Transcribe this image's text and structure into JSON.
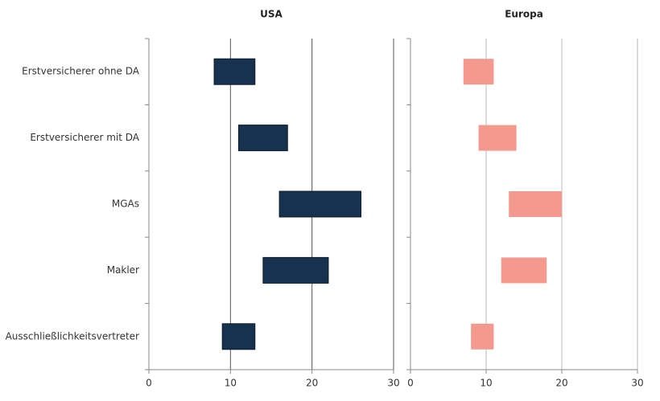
{
  "chart_data": [
    {
      "type": "floating-bar",
      "title": "USA",
      "categories": [
        "Erstversicherer ohne DA",
        "Erstversicherer mit DA",
        "MGAs",
        "Makler",
        "Ausschließlichkeitsvertreter"
      ],
      "values": [
        [
          8,
          13
        ],
        [
          11,
          17
        ],
        [
          16,
          26
        ],
        [
          14,
          22
        ],
        [
          9,
          13
        ]
      ],
      "color": "#17324f",
      "grid_color": "#555555",
      "xlim": [
        0,
        30
      ],
      "xticks": [
        0,
        10,
        20,
        30
      ],
      "grid": true
    },
    {
      "type": "floating-bar",
      "title": "Europa",
      "values": [
        [
          7,
          11
        ],
        [
          9,
          14
        ],
        [
          13,
          20
        ],
        [
          12,
          18
        ],
        [
          8,
          11
        ]
      ],
      "color": "#f4998e",
      "grid_color": "#bbbbbb",
      "xlim": [
        0,
        30
      ],
      "xticks": [
        0,
        10,
        20,
        30
      ],
      "grid": true
    }
  ]
}
